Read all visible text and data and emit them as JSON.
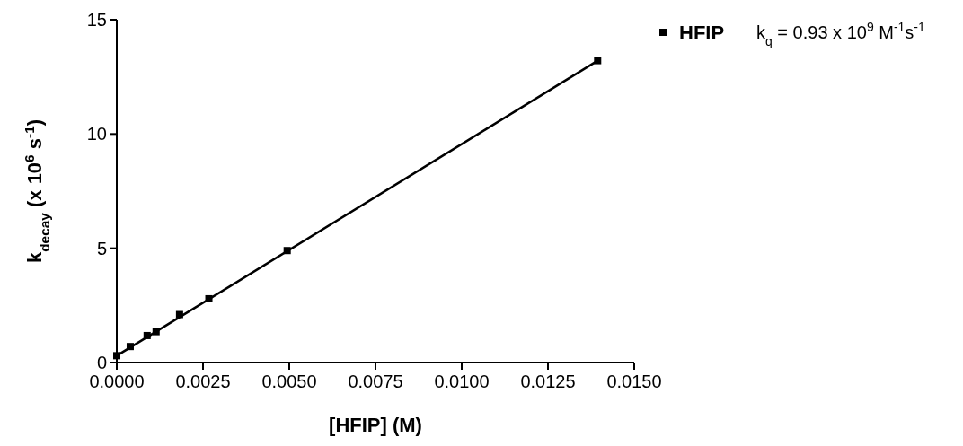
{
  "chart_data": {
    "type": "scatter",
    "xlabel": "[HFIP] (M)",
    "ylabel": "k$_{decay}$ (x 10$^{6}$ s$^{-1}$)",
    "xlim": [
      0,
      0.015
    ],
    "xticks": [
      {
        "value": 0,
        "label": "0.0000"
      },
      {
        "value": 0.0025,
        "label": "0.0025"
      },
      {
        "value": 0.005,
        "label": "0.0050"
      },
      {
        "value": 0.0075,
        "label": "0.0075"
      },
      {
        "value": 0.01,
        "label": "0.0100"
      },
      {
        "value": 0.0125,
        "label": "0.0125"
      },
      {
        "value": 0.015,
        "label": "0.0150"
      }
    ],
    "ylim": [
      0,
      15
    ],
    "yticks": [
      0,
      5,
      10,
      15
    ],
    "grid": false,
    "legend": "top right",
    "marker": "square",
    "annotations": [
      "k$_{q}$ = 0.93 x 10$^{9}$ M$^{-1}$s$^{-1}$"
    ],
    "series": [
      {
        "name": "HFIP",
        "color": "#000000",
        "x": [
          0,
          0.00039,
          0.00088,
          0.00114,
          0.00182,
          0.00267,
          0.00494,
          0.01394
        ],
        "values": [
          0.3,
          0.7,
          1.18,
          1.35,
          2.1,
          2.79,
          4.9,
          13.21
        ]
      },
      {
        "type": "line",
        "color": "#000000",
        "marker": "none",
        "x": [
          0,
          0.01394
        ],
        "values": [
          0.3,
          13.21
        ]
      }
    ]
  }
}
